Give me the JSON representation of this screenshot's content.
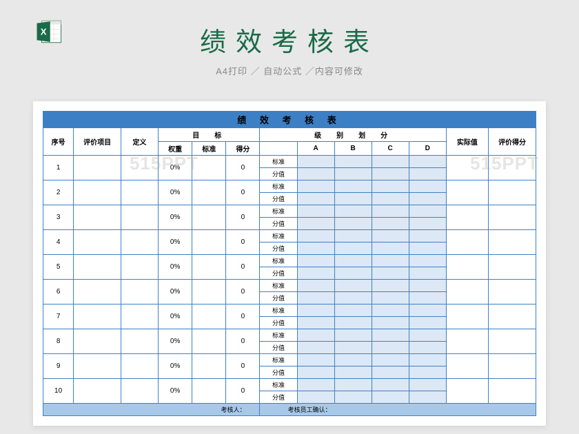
{
  "header": {
    "title": "绩效考核表",
    "subtitle": "A4打印 ／ 自动公式 ／内容可修改"
  },
  "watermark": "515PPT",
  "table": {
    "title": "绩 效 考 核 表",
    "columns": {
      "seq": "序号",
      "item": "评价项目",
      "def": "定义",
      "target_group": "目　标",
      "weight": "权重",
      "standard": "标准",
      "score": "得分",
      "level_group": "级　别　划　分",
      "level_blank": "",
      "A": "A",
      "B": "B",
      "C": "C",
      "D": "D",
      "actual": "实际值",
      "eval_score": "评价得分"
    },
    "sublabels": {
      "std": "标准",
      "val": "分值"
    },
    "rows": [
      {
        "seq": "1",
        "weight": "0%",
        "score": "0"
      },
      {
        "seq": "2",
        "weight": "0%",
        "score": "0"
      },
      {
        "seq": "3",
        "weight": "0%",
        "score": "0"
      },
      {
        "seq": "4",
        "weight": "0%",
        "score": "0"
      },
      {
        "seq": "5",
        "weight": "0%",
        "score": "0"
      },
      {
        "seq": "6",
        "weight": "0%",
        "score": "0"
      },
      {
        "seq": "7",
        "weight": "0%",
        "score": "0"
      },
      {
        "seq": "8",
        "weight": "0%",
        "score": "0"
      },
      {
        "seq": "9",
        "weight": "0%",
        "score": "0"
      },
      {
        "seq": "10",
        "weight": "0%",
        "score": "0"
      }
    ],
    "footer": {
      "assessor": "考核人：",
      "confirm": "考核员工确认："
    }
  },
  "colors": {
    "header_bg": "#3d7fc4",
    "light_bg": "#dce8f5",
    "footer_bg": "#a8c8e8",
    "border": "#3d7fc4",
    "title_color": "#1a6b47",
    "page_bg": "#e8e8e8"
  }
}
